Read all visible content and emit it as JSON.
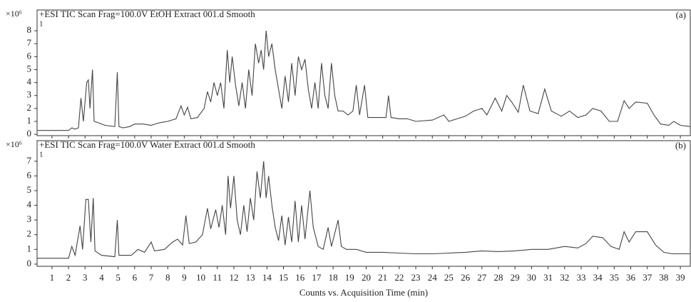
{
  "chart_data": [
    {
      "type": "line",
      "title": "+ESI TIC Scan Frag=100.0V EtOH Extract 001.d Smooth",
      "panel_label": "(a)",
      "y_label": "×10⁶",
      "annotation": "1",
      "xlim": [
        0.1,
        39.6
      ],
      "ylim": [
        -0.1,
        9.6
      ],
      "yticks": [
        0,
        1,
        2,
        3,
        4,
        5,
        6,
        7,
        8
      ],
      "color": "#444444",
      "x": [
        0.1,
        1.5,
        2.0,
        2.2,
        2.4,
        2.6,
        2.75,
        2.9,
        3.1,
        3.2,
        3.3,
        3.45,
        3.55,
        3.8,
        4.2,
        4.8,
        4.95,
        5.05,
        5.3,
        5.7,
        6.0,
        6.5,
        7.0,
        7.5,
        8.0,
        8.5,
        8.8,
        9.0,
        9.2,
        9.4,
        9.8,
        10.2,
        10.4,
        10.6,
        10.8,
        11.0,
        11.2,
        11.4,
        11.6,
        11.75,
        11.9,
        12.1,
        12.3,
        12.5,
        12.7,
        12.9,
        13.1,
        13.3,
        13.5,
        13.65,
        13.8,
        13.95,
        14.1,
        14.3,
        14.5,
        14.7,
        14.9,
        15.1,
        15.3,
        15.5,
        15.7,
        15.9,
        16.1,
        16.3,
        16.5,
        16.7,
        16.9,
        17.1,
        17.3,
        17.5,
        17.7,
        17.9,
        18.1,
        18.3,
        18.6,
        18.9,
        19.2,
        19.4,
        19.6,
        19.9,
        20.1,
        20.6,
        21.2,
        21.35,
        21.5,
        22.0,
        22.5,
        23.0,
        24.0,
        24.7,
        25.0,
        25.5,
        26.0,
        26.5,
        27.0,
        27.3,
        27.8,
        28.2,
        28.5,
        28.8,
        29.2,
        29.5,
        29.9,
        30.4,
        30.8,
        31.2,
        31.8,
        32.3,
        32.8,
        33.3,
        33.7,
        34.2,
        34.7,
        35.2,
        35.6,
        35.9,
        36.3,
        37.0,
        37.4,
        37.8,
        38.3,
        38.6,
        39.0,
        39.6
      ],
      "values": [
        0.3,
        0.3,
        0.3,
        0.5,
        0.4,
        0.5,
        2.8,
        1.0,
        4.0,
        4.2,
        2.0,
        5.0,
        1.0,
        0.9,
        0.7,
        0.6,
        4.8,
        0.6,
        0.5,
        0.6,
        0.8,
        0.8,
        0.7,
        0.9,
        1.0,
        1.2,
        2.2,
        1.5,
        2.1,
        1.2,
        1.3,
        2.0,
        3.3,
        2.5,
        4.0,
        3.0,
        4.0,
        2.0,
        6.5,
        4.0,
        6.0,
        3.8,
        2.2,
        4.0,
        2.0,
        5.0,
        3.0,
        7.0,
        5.5,
        6.5,
        5.0,
        8.0,
        6.0,
        7.0,
        5.0,
        3.5,
        2.0,
        4.5,
        2.5,
        5.5,
        3.0,
        6.0,
        5.0,
        5.8,
        3.5,
        2.0,
        4.0,
        2.0,
        5.5,
        3.0,
        2.0,
        5.5,
        3.0,
        1.8,
        1.8,
        1.5,
        1.8,
        3.8,
        1.5,
        3.8,
        1.3,
        1.3,
        1.3,
        3.0,
        1.3,
        1.2,
        1.2,
        1.0,
        1.1,
        1.5,
        1.0,
        1.2,
        1.4,
        1.8,
        2.0,
        1.5,
        2.8,
        1.8,
        3.0,
        2.5,
        1.7,
        3.8,
        1.8,
        1.6,
        3.5,
        1.8,
        1.4,
        1.8,
        1.3,
        1.5,
        2.0,
        1.8,
        1.0,
        1.0,
        2.6,
        2.0,
        2.5,
        2.4,
        1.5,
        0.8,
        0.7,
        1.0,
        0.7,
        0.6
      ]
    },
    {
      "type": "line",
      "title": "+ESI TIC Scan Frag=100.0V Water Extract 001.d Smooth",
      "panel_label": "(b)",
      "y_label": "×10⁶",
      "annotation": "1",
      "x_label": "Counts vs. Acquisition Time (min)",
      "xlim": [
        0.1,
        39.6
      ],
      "ylim": [
        -0.15,
        8.4
      ],
      "yticks": [
        0,
        1,
        2,
        3,
        4,
        5,
        6,
        7
      ],
      "color": "#444444",
      "xticks": [
        1,
        2,
        3,
        4,
        5,
        6,
        7,
        8,
        9,
        10,
        11,
        12,
        13,
        14,
        15,
        16,
        17,
        18,
        19,
        20,
        21,
        22,
        23,
        24,
        25,
        26,
        27,
        28,
        29,
        30,
        31,
        32,
        33,
        34,
        35,
        36,
        37,
        38,
        39
      ],
      "x": [
        0.1,
        1.5,
        2.0,
        2.2,
        2.4,
        2.7,
        2.85,
        3.05,
        3.2,
        3.35,
        3.5,
        3.6,
        4.0,
        4.8,
        4.95,
        5.05,
        5.4,
        5.8,
        6.2,
        6.6,
        7.0,
        7.2,
        7.8,
        8.3,
        8.6,
        8.9,
        9.1,
        9.3,
        9.7,
        10.1,
        10.4,
        10.6,
        10.9,
        11.1,
        11.3,
        11.5,
        11.65,
        11.8,
        12.0,
        12.2,
        12.4,
        12.6,
        12.8,
        13.0,
        13.2,
        13.4,
        13.6,
        13.8,
        13.95,
        14.1,
        14.3,
        14.5,
        14.7,
        14.9,
        15.1,
        15.3,
        15.5,
        15.7,
        15.9,
        16.1,
        16.3,
        16.6,
        16.8,
        17.1,
        17.4,
        17.7,
        17.9,
        18.3,
        18.5,
        18.8,
        19.4,
        20.0,
        21.0,
        22.0,
        23.0,
        24.0,
        25.0,
        26.0,
        27.0,
        28.0,
        29.0,
        30.0,
        31.0,
        32.0,
        32.8,
        33.3,
        33.7,
        34.3,
        34.8,
        35.3,
        35.6,
        35.9,
        36.3,
        37.0,
        37.5,
        38.0,
        38.5,
        39.6
      ],
      "values": [
        0.4,
        0.4,
        0.4,
        1.2,
        0.6,
        2.6,
        1.0,
        4.4,
        4.4,
        1.5,
        4.5,
        0.9,
        0.6,
        0.5,
        3.0,
        0.6,
        0.6,
        0.6,
        1.0,
        0.8,
        1.5,
        0.9,
        1.0,
        1.5,
        1.7,
        1.3,
        3.3,
        1.4,
        1.5,
        2.0,
        3.8,
        2.4,
        3.7,
        2.5,
        4.0,
        2.0,
        6.0,
        3.8,
        6.0,
        3.0,
        2.0,
        4.0,
        2.2,
        4.5,
        3.0,
        6.3,
        4.5,
        7.0,
        4.5,
        6.0,
        4.0,
        2.5,
        1.6,
        3.3,
        1.3,
        3.2,
        1.5,
        4.3,
        1.5,
        4.0,
        1.7,
        5.0,
        2.5,
        1.2,
        1.0,
        2.5,
        1.2,
        3.0,
        1.2,
        1.0,
        1.0,
        0.8,
        0.8,
        0.75,
        0.7,
        0.7,
        0.75,
        0.8,
        0.9,
        0.85,
        0.9,
        1.0,
        1.0,
        1.2,
        1.1,
        1.4,
        1.9,
        1.8,
        1.2,
        1.0,
        2.2,
        1.5,
        2.2,
        2.2,
        1.3,
        0.8,
        0.7,
        0.7
      ]
    }
  ]
}
